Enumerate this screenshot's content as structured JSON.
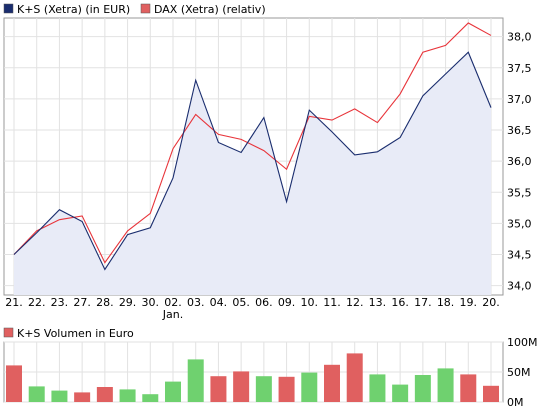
{
  "chart_data": [
    {
      "type": "line",
      "legend_placement": "top-left",
      "grid": true,
      "x": [
        "21.",
        "22.",
        "23.",
        "27.",
        "28.",
        "29.",
        "30.",
        "02.",
        "03.",
        "04.",
        "05.",
        "06.",
        "09.",
        "10.",
        "11.",
        "12.",
        "13.",
        "16.",
        "17.",
        "18.",
        "19.",
        "20."
      ],
      "x_sublabel": "Jan.",
      "y_ticks": [
        "34,0",
        "34,5",
        "35,0",
        "35,5",
        "36,0",
        "36,5",
        "37,0",
        "37,5",
        "38,0"
      ],
      "ylim": [
        33.85,
        38.3
      ],
      "series": [
        {
          "name": "K+S (Xetra) (in EUR)",
          "color": "#1a2d6e",
          "fill": "#e8ebf7",
          "values": [
            34.5,
            34.85,
            35.22,
            35.03,
            34.26,
            34.82,
            34.93,
            35.73,
            37.3,
            36.3,
            36.14,
            36.7,
            35.35,
            36.82,
            36.47,
            36.1,
            36.15,
            36.38,
            37.05,
            37.4,
            37.75,
            36.86
          ]
        },
        {
          "name": "DAX (Xetra) (relativ)",
          "color": "#e8343a",
          "values": [
            34.5,
            34.88,
            35.06,
            35.12,
            34.37,
            34.88,
            35.16,
            36.2,
            36.75,
            36.43,
            36.35,
            36.17,
            35.87,
            36.72,
            36.66,
            36.84,
            36.62,
            37.08,
            37.75,
            37.86,
            38.22,
            38.02
          ]
        }
      ]
    },
    {
      "type": "bar",
      "legend_placement": "top-left",
      "grid": true,
      "series": [
        {
          "name": "K+S Volumen in Euro",
          "values": [
            61,
            26,
            19,
            16,
            25,
            21,
            13,
            34,
            71,
            43,
            51,
            43,
            42,
            49,
            62,
            81,
            46,
            29,
            45,
            56,
            46,
            27
          ],
          "colors": [
            "#e06060",
            "#6fd16f",
            "#6fd16f",
            "#e06060",
            "#e06060",
            "#6fd16f",
            "#6fd16f",
            "#6fd16f",
            "#6fd16f",
            "#e06060",
            "#e06060",
            "#6fd16f",
            "#e06060",
            "#6fd16f",
            "#e06060",
            "#e06060",
            "#6fd16f",
            "#6fd16f",
            "#6fd16f",
            "#6fd16f",
            "#e06060",
            "#e06060"
          ]
        }
      ],
      "y_unit": "M",
      "y_ticks": [
        "100M",
        "50M",
        "0M"
      ],
      "ylim": [
        0,
        100
      ]
    }
  ]
}
